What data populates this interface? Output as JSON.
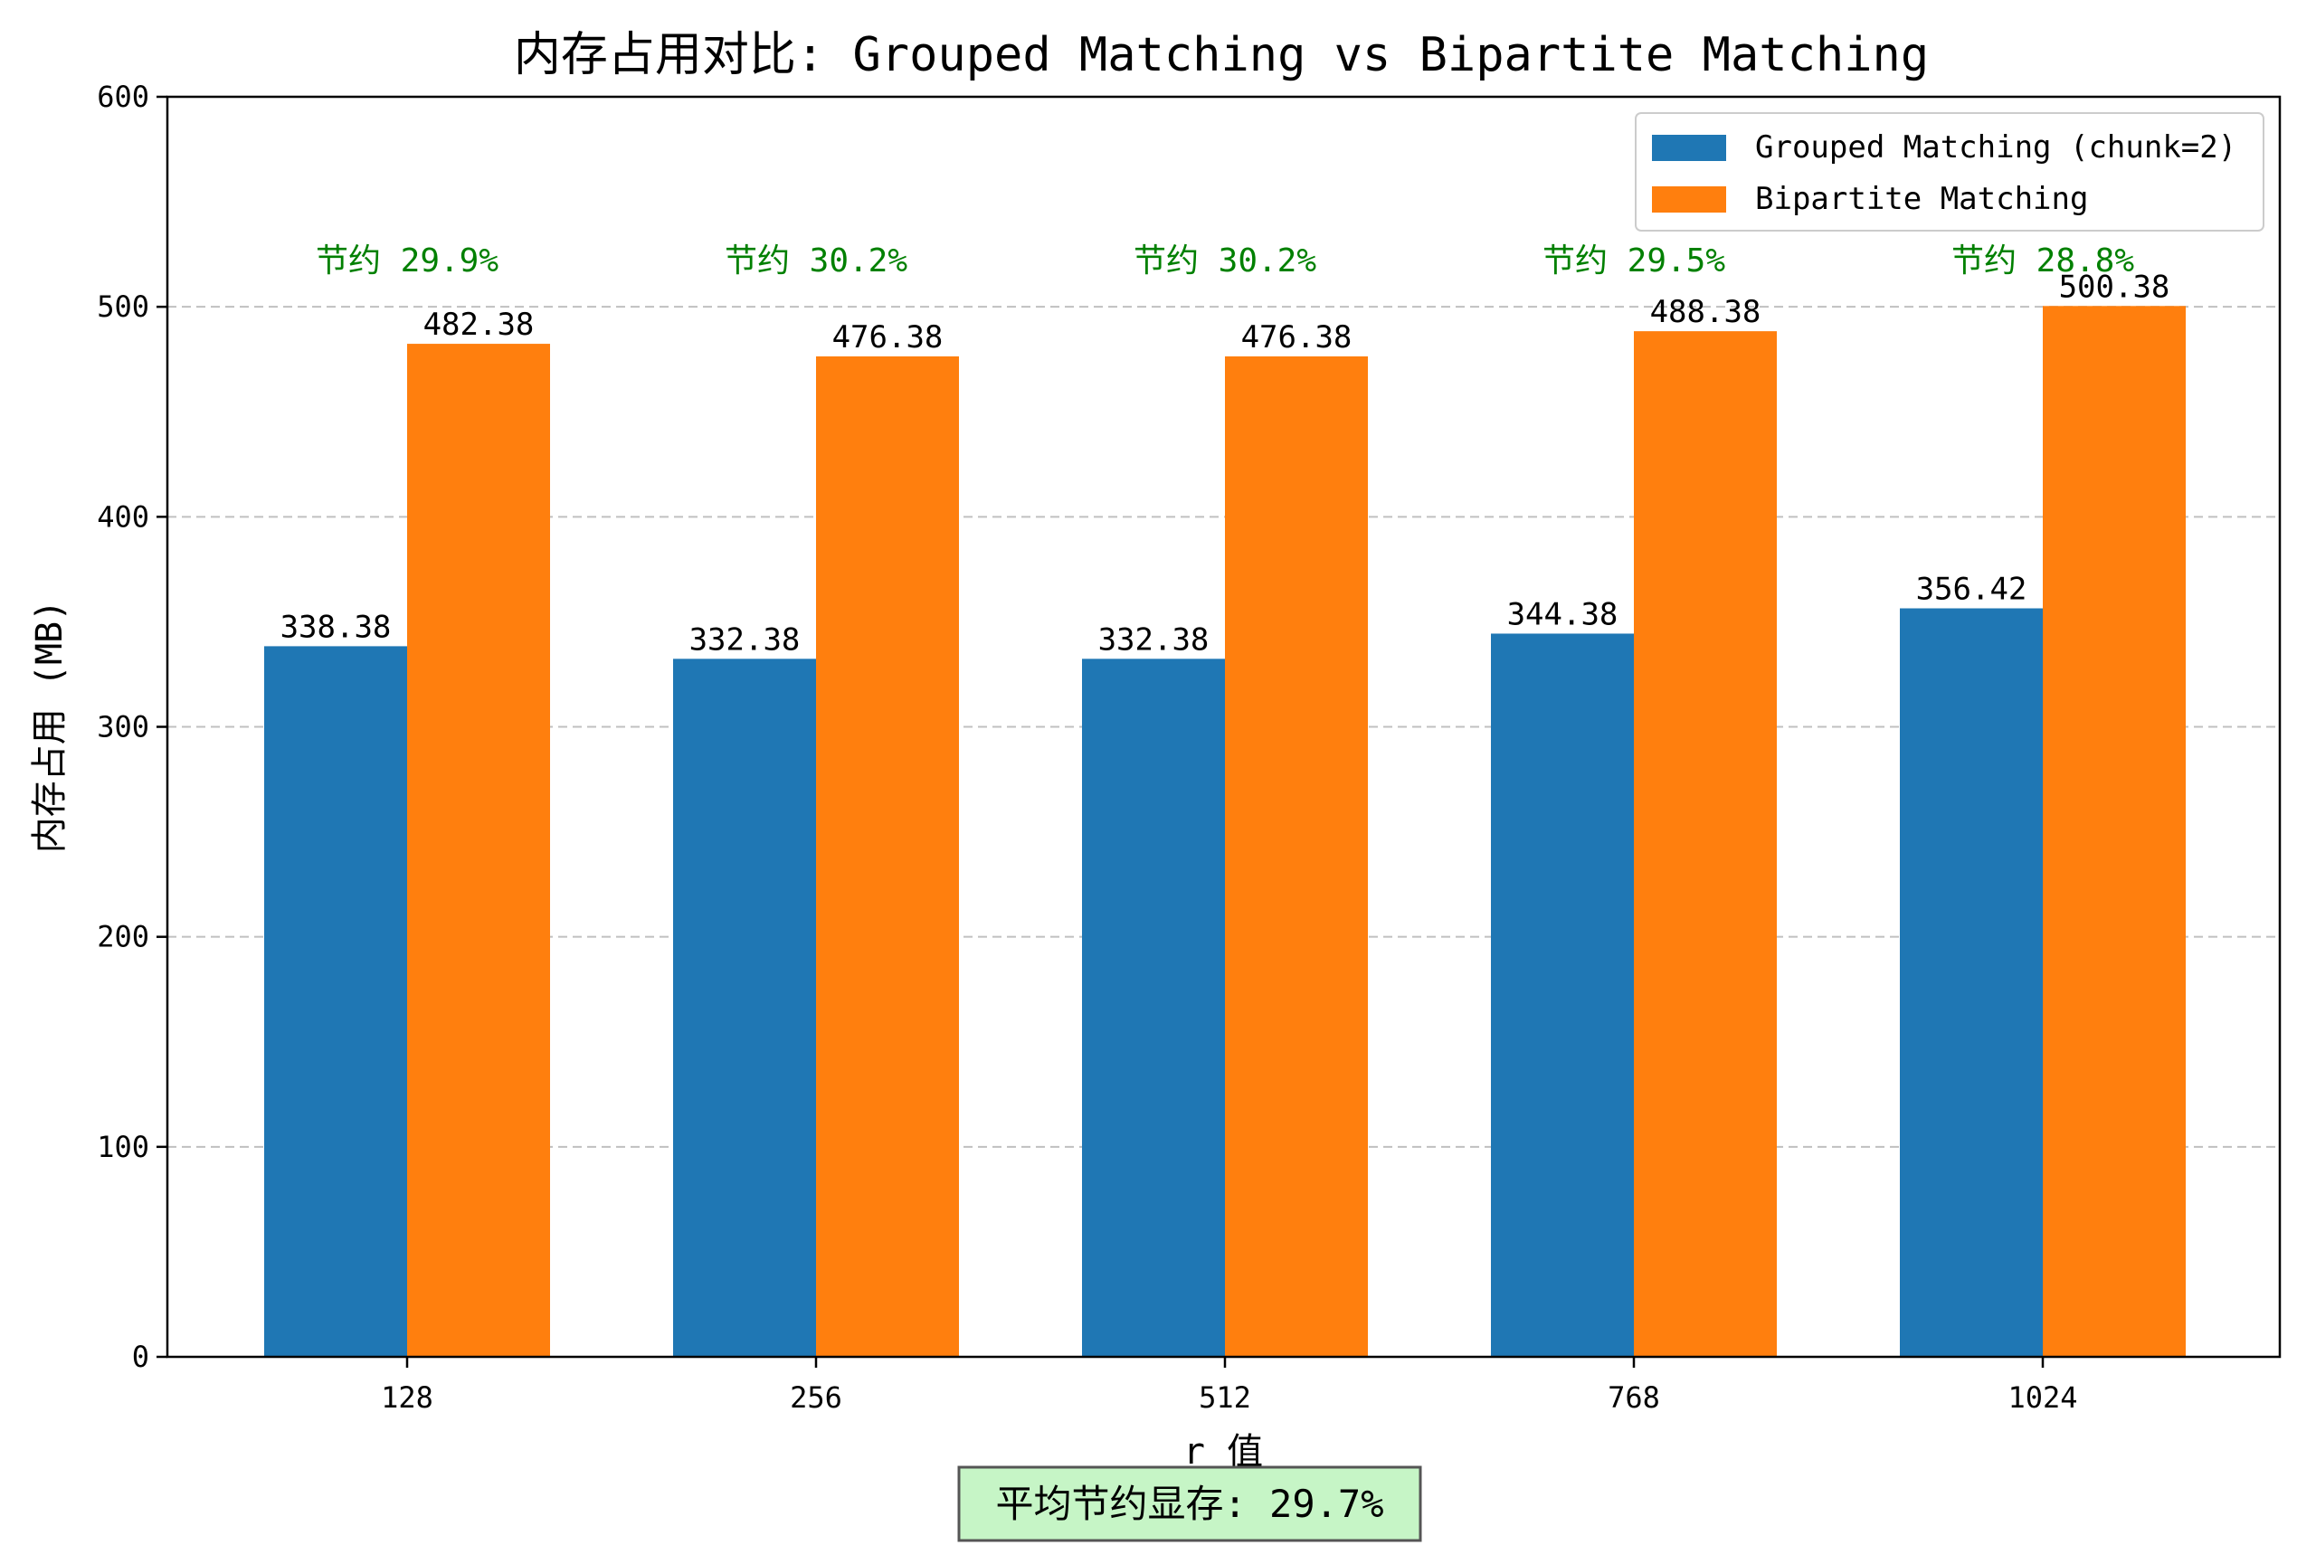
{
  "chart_data": {
    "type": "bar",
    "title": "内存占用对比: Grouped Matching vs Bipartite Matching",
    "xlabel": "r 值",
    "ylabel": "内存占用 (MB)",
    "categories": [
      "128",
      "256",
      "512",
      "768",
      "1024"
    ],
    "ylim": [
      0,
      600
    ],
    "yticks": [
      0,
      100,
      200,
      300,
      400,
      500,
      600
    ],
    "grid": "y-dashed",
    "legend_position": "top-right",
    "series": [
      {
        "name": "Grouped Matching (chunk=2)",
        "color": "#1f77b4",
        "values": [
          338.38,
          332.38,
          332.38,
          344.38,
          356.42
        ],
        "labels": [
          "338.38",
          "332.38",
          "332.38",
          "344.38",
          "356.42"
        ]
      },
      {
        "name": "Bipartite Matching",
        "color": "#ff7f0e",
        "values": [
          482.38,
          476.38,
          476.38,
          488.38,
          500.38
        ],
        "labels": [
          "482.38",
          "476.38",
          "476.38",
          "488.38",
          "500.38"
        ]
      }
    ],
    "savings": [
      "节约 29.9%",
      "节约 30.2%",
      "节约 30.2%",
      "节约 29.5%",
      "节约 28.8%"
    ],
    "savings_color": "#008000",
    "summary": "平均节约显存: 29.7%",
    "summary_box_color": "#c6f5c6"
  }
}
